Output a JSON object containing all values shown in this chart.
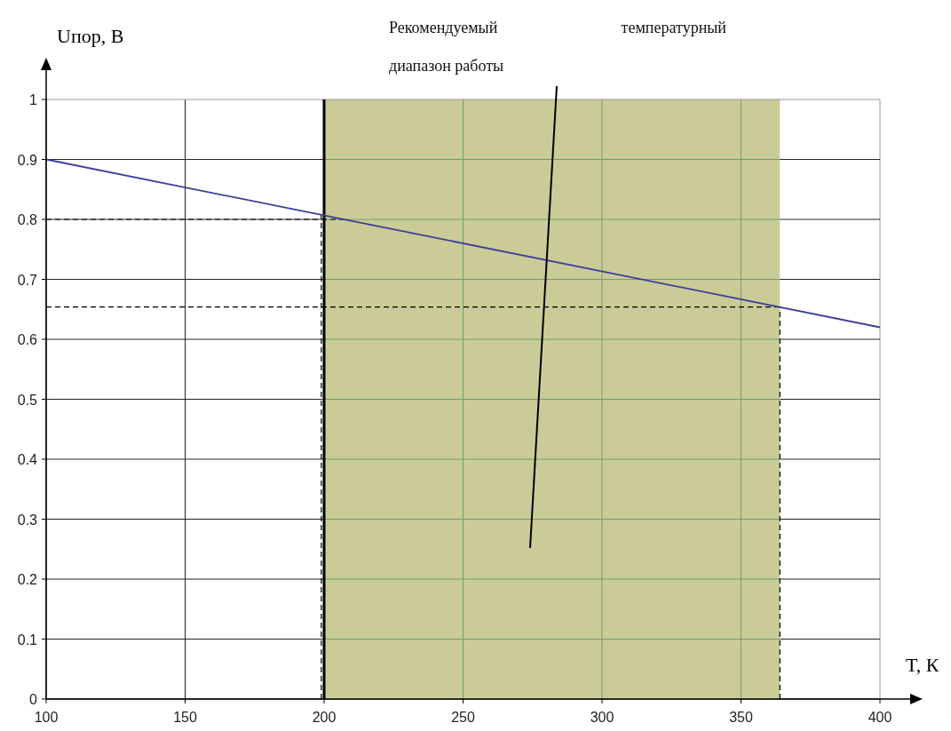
{
  "chart_data": {
    "type": "line",
    "xlabel": "T, К",
    "ylabel": "Uпор, В",
    "x": [
      100,
      400
    ],
    "series": [
      {
        "color": "#3e3e9a",
        "values": [
          0.9,
          0.62
        ]
      }
    ],
    "xlim": [
      100,
      400
    ],
    "ylim": [
      0,
      1
    ],
    "xticks": [
      100,
      150,
      200,
      250,
      300,
      350,
      400
    ],
    "yticks": [
      0,
      0.1,
      0.2,
      0.3,
      0.4,
      0.5,
      0.6,
      0.7,
      0.8,
      0.9,
      1
    ],
    "grid": true,
    "marker": "none",
    "line_style": "solid",
    "bands": [
      {
        "axis": "x",
        "from": 200,
        "to": 364,
        "color": "#cbcb98"
      }
    ],
    "ref_lines": [
      {
        "axis": "y",
        "value": 0.8,
        "line_style": "dashed"
      },
      {
        "axis": "y",
        "value": 0.654,
        "line_style": "dashed"
      },
      {
        "axis": "x",
        "value": 199,
        "line_style": "dashed"
      },
      {
        "axis": "x",
        "value": 200,
        "line_style": "solid"
      },
      {
        "axis": "x",
        "value": 364,
        "line_style": "dashed"
      }
    ],
    "annotations": [
      "Рекомендуемый температурный диапазон работы"
    ]
  }
}
